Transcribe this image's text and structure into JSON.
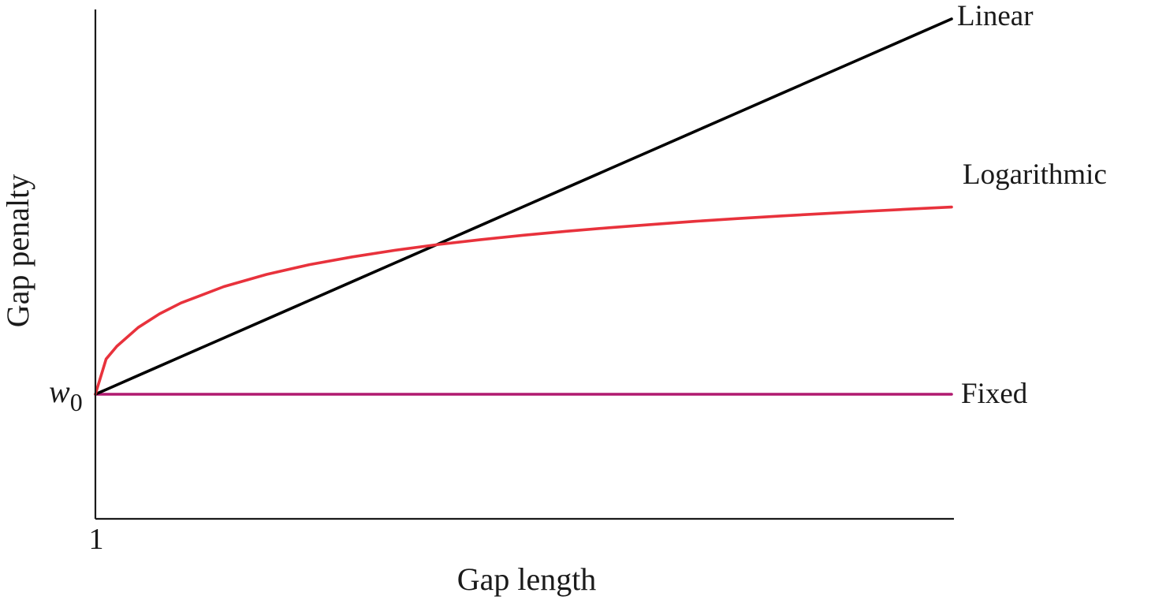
{
  "chart_data": {
    "type": "line",
    "xlabel": "Gap length",
    "ylabel": "Gap penalty",
    "x_tick_labels": [
      "1"
    ],
    "y_tick_labels": [
      {
        "main": "w",
        "sub": "0"
      }
    ],
    "grid": false,
    "legend": "labels at line ends (right)",
    "xlim": [
      1,
      11
    ],
    "ylim": [
      -1,
      3.05
    ],
    "x": [
      1,
      1.125,
      1.25,
      1.5,
      1.75,
      2,
      2.5,
      3,
      3.5,
      4,
      4.5,
      5,
      5.5,
      6,
      6.5,
      7,
      7.5,
      8,
      8.5,
      9,
      9.5,
      10,
      10.5,
      11
    ],
    "series": [
      {
        "name": "Linear",
        "color": "#000000",
        "values": [
          0,
          0.0375,
          0.075,
          0.15,
          0.225,
          0.3,
          0.45,
          0.6,
          0.75,
          0.9,
          1.05,
          1.2,
          1.35,
          1.5,
          1.65,
          1.8,
          1.95,
          2.1,
          2.25,
          2.4,
          2.55,
          2.7,
          2.85,
          3.0
        ]
      },
      {
        "name": "Logarithmic",
        "color": "#e8323c",
        "values": [
          0,
          0.282,
          0.384,
          0.534,
          0.643,
          0.73,
          0.86,
          0.958,
          1.036,
          1.098,
          1.151,
          1.197,
          1.236,
          1.271,
          1.303,
          1.331,
          1.357,
          1.382,
          1.404,
          1.425,
          1.444,
          1.462,
          1.48,
          1.496
        ]
      },
      {
        "name": "Fixed",
        "color": "#b0196f",
        "values": [
          0,
          0,
          0,
          0,
          0,
          0,
          0,
          0,
          0,
          0,
          0,
          0,
          0,
          0,
          0,
          0,
          0,
          0,
          0,
          0,
          0,
          0,
          0,
          0
        ]
      }
    ]
  }
}
